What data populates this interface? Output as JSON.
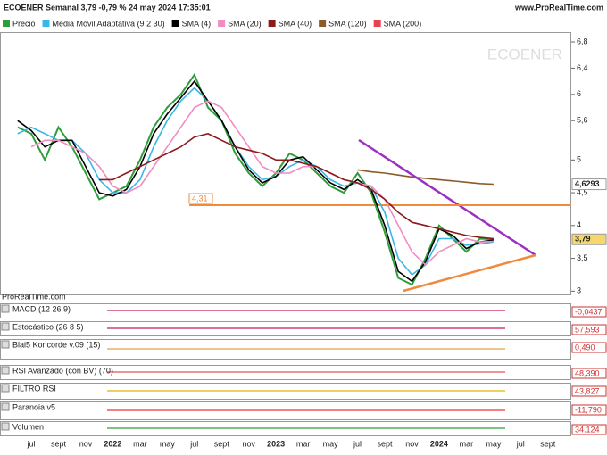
{
  "header": {
    "title": "ECOENER Semanal 3,79 -0,79 % 24 may 2024 17:35:01",
    "site": "www.ProRealTime.com"
  },
  "chart_data": {
    "type": "line",
    "watermark": "ECOENER",
    "credit": "ProRealTime.com",
    "categories": [
      null,
      "jul",
      null,
      "sept",
      null,
      "nov",
      null,
      "2022",
      null,
      "mar",
      null,
      "may",
      null,
      "jul",
      null,
      "sept",
      null,
      "nov",
      null,
      "2023",
      null,
      "mar",
      null,
      "may",
      null,
      "jul",
      null,
      "sept",
      null,
      "nov",
      null,
      "2024",
      null,
      "mar",
      null,
      "may",
      null,
      "jul",
      null,
      "sept"
    ],
    "ylim": [
      2.95,
      6.95
    ],
    "yticks": [
      3,
      {
        "value": 3.5,
        "label": "3,5"
      },
      4,
      {
        "value": 4.5,
        "label": "4,5"
      },
      5,
      {
        "value": 5.6,
        "label": "5,6"
      },
      6,
      {
        "value": 6.4,
        "label": "6,4"
      },
      {
        "value": 6.8,
        "label": "6,8"
      }
    ],
    "series": [
      {
        "name": "Precio",
        "color": "#2e9e3a",
        "values": [
          5.5,
          5.4,
          5.0,
          5.5,
          5.2,
          4.8,
          4.4,
          4.5,
          4.6,
          5.0,
          5.5,
          5.8,
          6.0,
          6.3,
          5.8,
          5.6,
          5.1,
          4.8,
          4.6,
          4.8,
          5.1,
          5.0,
          4.8,
          4.6,
          4.5,
          4.8,
          4.5,
          3.9,
          3.2,
          3.1,
          3.5,
          4.0,
          3.8,
          3.6,
          3.8,
          3.79,
          null,
          null,
          null,
          null
        ]
      },
      {
        "name": "Media Móvil Adaptativa (9 2 30)",
        "color": "#3cb6e6",
        "values": [
          5.4,
          5.5,
          5.4,
          5.3,
          5.3,
          5.1,
          4.7,
          4.5,
          4.5,
          4.7,
          5.2,
          5.6,
          5.9,
          6.1,
          5.9,
          5.6,
          5.2,
          4.9,
          4.7,
          4.75,
          4.9,
          5.0,
          4.9,
          4.7,
          4.6,
          4.65,
          4.6,
          4.2,
          3.5,
          3.25,
          3.4,
          3.8,
          3.8,
          3.7,
          3.72,
          3.75,
          null,
          null,
          null,
          null
        ]
      },
      {
        "name": "SMA (4)",
        "color": "#000000",
        "values": [
          5.6,
          5.45,
          5.2,
          5.3,
          5.3,
          4.9,
          4.5,
          4.45,
          4.55,
          4.9,
          5.4,
          5.7,
          5.95,
          6.2,
          5.9,
          5.6,
          5.2,
          4.85,
          4.65,
          4.75,
          5.0,
          5.05,
          4.85,
          4.65,
          4.55,
          4.7,
          4.55,
          4.0,
          3.3,
          3.15,
          3.45,
          3.95,
          3.85,
          3.65,
          3.75,
          3.78,
          null,
          null,
          null,
          null
        ]
      },
      {
        "name": "SMA (20)",
        "color": "#f08cc0",
        "values": [
          null,
          5.2,
          5.3,
          5.3,
          5.2,
          5.1,
          4.9,
          4.6,
          4.5,
          4.6,
          4.9,
          5.2,
          5.5,
          5.8,
          5.9,
          5.8,
          5.5,
          5.2,
          4.9,
          4.8,
          4.8,
          4.9,
          4.9,
          4.8,
          4.7,
          4.65,
          4.6,
          4.4,
          4.0,
          3.6,
          3.4,
          3.6,
          3.7,
          3.8,
          3.75,
          3.76,
          null,
          null,
          null,
          null
        ]
      },
      {
        "name": "SMA (40)",
        "color": "#8b1a1a",
        "values": [
          null,
          null,
          null,
          null,
          null,
          null,
          4.7,
          4.7,
          4.8,
          4.9,
          5.0,
          5.1,
          5.2,
          5.35,
          5.4,
          5.3,
          5.2,
          5.15,
          5.1,
          5.0,
          5.0,
          4.95,
          4.9,
          4.8,
          4.7,
          4.65,
          4.55,
          4.4,
          4.2,
          4.05,
          4.0,
          3.95,
          3.9,
          3.85,
          3.82,
          3.8,
          null,
          null,
          null,
          null
        ]
      },
      {
        "name": "SMA (120)",
        "color": "#8b5a2b",
        "values": [
          null,
          null,
          null,
          null,
          null,
          null,
          null,
          null,
          null,
          null,
          null,
          null,
          null,
          null,
          null,
          null,
          null,
          null,
          null,
          null,
          null,
          null,
          null,
          null,
          null,
          4.85,
          4.82,
          4.8,
          4.77,
          4.74,
          4.72,
          4.7,
          4.68,
          4.66,
          4.64,
          4.63,
          null,
          null,
          null,
          null
        ]
      },
      {
        "name": "SMA (200)",
        "color": "#e8414f",
        "values": [
          null,
          null,
          null,
          null,
          null,
          null,
          null,
          null,
          null,
          null,
          null,
          null,
          null,
          null,
          null,
          null,
          null,
          null,
          null,
          null,
          null,
          null,
          null,
          null,
          null,
          null,
          null,
          null,
          null,
          null,
          null,
          null,
          null,
          null,
          null,
          null,
          null,
          null,
          null,
          null
        ]
      }
    ],
    "hline": {
      "value": 4.31,
      "label": "4,31",
      "color": "#f08a3c"
    },
    "last_labels": [
      {
        "value": 4.6293,
        "label": "4,6293"
      },
      {
        "value": 3.79,
        "label": "3,79"
      }
    ]
  },
  "indicators": [
    {
      "name": "MACD (12 26 9)",
      "last_value": "-0,0437"
    },
    {
      "name": "Estocástico (26 8 5)",
      "last_value": "57,593"
    },
    {
      "name": "Blai5 Koncorde v.09 (15)",
      "last_value": "0,490"
    },
    {
      "name": "RSI Avanzado (con BV) (70)",
      "last_value": "48,390"
    },
    {
      "name": "FILTRO RSI",
      "last_value": "43,827"
    },
    {
      "name": "Paranoia v5",
      "last_value": "-11,790"
    },
    {
      "name": "Volumen",
      "last_value": "34.124"
    }
  ]
}
